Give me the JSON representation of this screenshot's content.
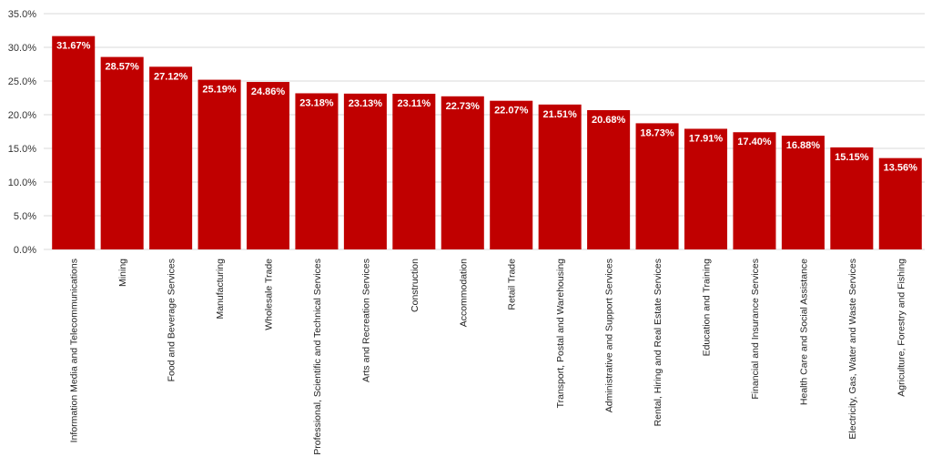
{
  "chart_data": {
    "type": "bar",
    "title": "",
    "xlabel": "",
    "ylabel": "",
    "ylim": [
      0,
      35
    ],
    "yticks": [
      "0.0%",
      "5.0%",
      "10.0%",
      "15.0%",
      "20.0%",
      "25.0%",
      "30.0%",
      "35.0%"
    ],
    "grid": true,
    "bar_color": "#c00000",
    "label_color": "#ffffff",
    "categories": [
      "Information Media and Telecommunications",
      "Mining",
      "Food and Beverage Services",
      "Manufacturing",
      "Wholesale Trade",
      "Professional, Scientific and Technical Services",
      "Arts and Recreation Services",
      "Construction",
      "Accommodation",
      "Retail Trade",
      "Transport, Postal and Warehousing",
      "Administrative and Support Services",
      "Rental, Hiring and Real Estate Services",
      "Education and Training",
      "Financial and Insurance Services",
      "Health Care and Social Assistance",
      "Electricity, Gas, Water and Waste Services",
      "Agriculture, Forestry and Fishing"
    ],
    "values": [
      31.67,
      28.57,
      27.12,
      25.19,
      24.86,
      23.18,
      23.13,
      23.11,
      22.73,
      22.07,
      21.51,
      20.68,
      18.73,
      17.91,
      17.4,
      16.88,
      15.15,
      13.56
    ],
    "data_labels": [
      "31.67%",
      "28.57%",
      "27.12%",
      "25.19%",
      "24.86%",
      "23.18%",
      "23.13%",
      "23.11%",
      "22.73%",
      "22.07%",
      "21.51%",
      "20.68%",
      "18.73%",
      "17.91%",
      "17.40%",
      "16.88%",
      "15.15%",
      "13.56%"
    ]
  }
}
